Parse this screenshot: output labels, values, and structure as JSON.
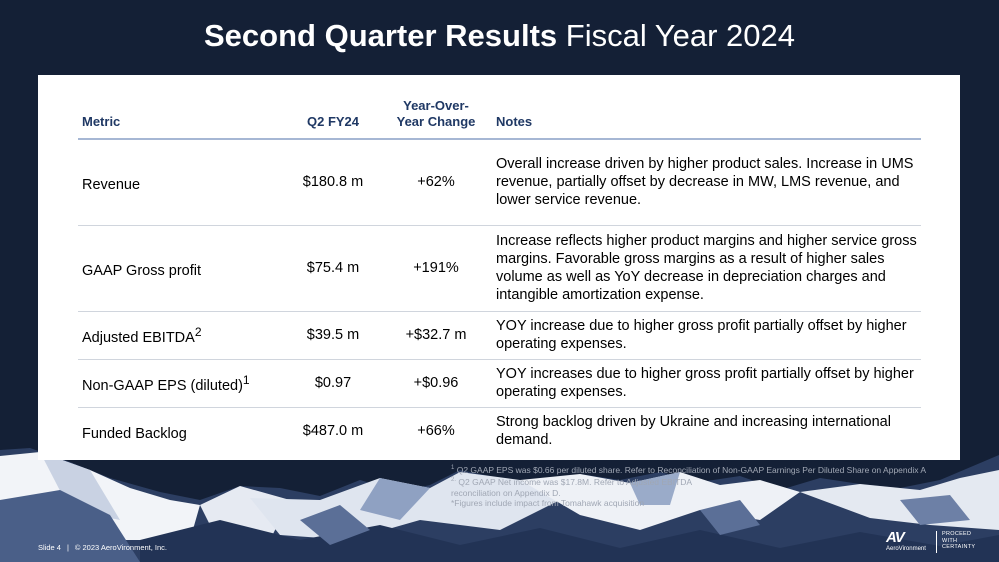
{
  "slide": {
    "title_bold": "Second Quarter Results",
    "title_light": "Fiscal Year 2024"
  },
  "table": {
    "headers": {
      "metric": "Metric",
      "q2": "Q2 FY24",
      "yoy_line1": "Year-Over-",
      "yoy_line2": "Year Change",
      "notes": "Notes"
    },
    "rows": [
      {
        "metric": "Revenue",
        "sup": "",
        "q2": "$180.8 m",
        "yoy": "+62%",
        "notes": "Overall increase driven by higher product sales. Increase in UMS revenue, partially offset by decrease in MW, LMS revenue, and lower service revenue."
      },
      {
        "metric": "GAAP Gross profit",
        "sup": "",
        "q2": "$75.4 m",
        "yoy": "+191%",
        "notes": "Increase reflects higher product margins and higher service gross margins. Favorable gross margins as a result of higher sales volume as well as YoY decrease in depreciation charges and intangible amortization expense."
      },
      {
        "metric": "Adjusted EBITDA",
        "sup": "2",
        "q2": "$39.5 m",
        "yoy": "+$32.7 m",
        "notes": "YOY increase due to higher gross profit partially offset by higher operating expenses."
      },
      {
        "metric": "Non-GAAP EPS (diluted)",
        "sup": "1",
        "q2": "$0.97",
        "yoy": "+$0.96",
        "notes": "YOY increases due to higher gross profit partially offset by higher operating expenses."
      },
      {
        "metric": "Funded Backlog",
        "sup": "",
        "q2": "$487.0 m",
        "yoy": "+66%",
        "notes": "Strong backlog driven by Ukraine and increasing international demand."
      }
    ]
  },
  "footnotes": {
    "note1_sup": "1",
    "note1": "Q2 GAAP EPS was $0.66 per diluted share. Refer to Reconciliation of Non-GAAP Earnings Per Diluted Share on Appendix A",
    "note2_sup": "2.",
    "note2_line1": "Q2 GAAP Net income was $17.8M. Refer to Adjusted EBITDA",
    "note2_line2": "reconciliation on Appendix D.",
    "note3": "*Figures include impact from Tomahawk acquisition"
  },
  "footer": {
    "slide_number": "Slide 4",
    "separator": "|",
    "copyright": "© 2023 AeroVironment, Inc."
  },
  "logo": {
    "mark": "AV",
    "brand": "AeroVironment",
    "tag_line1": "PROCEED",
    "tag_line2": "WITH",
    "tag_line3": "CERTAINTY"
  },
  "colors": {
    "background": "#142036",
    "header_text": "#1f3864",
    "header_rule": "#a6b7d4",
    "row_rule": "#d0d5dd",
    "footnote_text": "#a0a7b4"
  }
}
